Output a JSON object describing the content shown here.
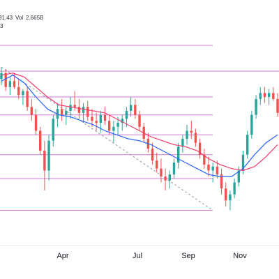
{
  "header": {
    "legend_prefix": "31.43",
    "volume_label": "Vol",
    "volume_value": "2.665B",
    "interval_label": "3"
  },
  "colors": {
    "up": "#26a69a",
    "down": "#ef5350",
    "level_line": "#d67ad9",
    "ma_fast": "#2962ff",
    "ma_slow": "#f23a6a",
    "trend_line": "#9598a1",
    "axis_text": "#131722"
  },
  "chart_data": {
    "type": "candlestick",
    "title": "",
    "xlabel": "",
    "ylabel": "",
    "x_axis_ticks": [
      "Apr",
      "Jul",
      "Sep",
      "Nov"
    ],
    "ylim": [
      0,
      100
    ],
    "levels": [
      93,
      80,
      67,
      58,
      48,
      38,
      26,
      10
    ],
    "trend_line": {
      "from": [
        0,
        82
      ],
      "to": [
        135,
        10
      ]
    },
    "moving_averages": [
      {
        "key": "fast",
        "values": [
          75,
          78,
          74,
          67,
          61,
          58,
          57,
          55,
          53,
          50,
          48,
          46,
          45,
          43,
          40,
          37,
          34,
          31,
          28,
          27,
          27,
          31,
          38,
          44,
          48
        ]
      },
      {
        "key": "slow",
        "values": [
          78,
          79,
          77,
          72,
          67,
          63,
          62,
          61,
          60,
          59,
          56,
          53,
          50,
          47,
          45,
          43,
          42,
          40,
          36,
          33,
          31,
          30,
          32,
          37,
          43
        ]
      }
    ],
    "candles": [
      {
        "o": 76,
        "h": 82,
        "l": 73,
        "c": 79
      },
      {
        "o": 79,
        "h": 81,
        "l": 70,
        "c": 72
      },
      {
        "o": 72,
        "h": 77,
        "l": 68,
        "c": 75
      },
      {
        "o": 75,
        "h": 79,
        "l": 71,
        "c": 72
      },
      {
        "o": 72,
        "h": 76,
        "l": 66,
        "c": 68
      },
      {
        "o": 68,
        "h": 71,
        "l": 63,
        "c": 70
      },
      {
        "o": 70,
        "h": 72,
        "l": 60,
        "c": 62
      },
      {
        "o": 62,
        "h": 66,
        "l": 55,
        "c": 58
      },
      {
        "o": 58,
        "h": 61,
        "l": 48,
        "c": 50
      },
      {
        "o": 50,
        "h": 52,
        "l": 38,
        "c": 40
      },
      {
        "o": 40,
        "h": 45,
        "l": 20,
        "c": 30
      },
      {
        "o": 30,
        "h": 48,
        "l": 25,
        "c": 45
      },
      {
        "o": 45,
        "h": 58,
        "l": 42,
        "c": 56
      },
      {
        "o": 56,
        "h": 64,
        "l": 52,
        "c": 61
      },
      {
        "o": 61,
        "h": 66,
        "l": 55,
        "c": 58
      },
      {
        "o": 58,
        "h": 62,
        "l": 53,
        "c": 60
      },
      {
        "o": 60,
        "h": 67,
        "l": 56,
        "c": 63
      },
      {
        "o": 63,
        "h": 70,
        "l": 60,
        "c": 62
      },
      {
        "o": 62,
        "h": 66,
        "l": 56,
        "c": 59
      },
      {
        "o": 59,
        "h": 64,
        "l": 54,
        "c": 62
      },
      {
        "o": 62,
        "h": 65,
        "l": 55,
        "c": 57
      },
      {
        "o": 57,
        "h": 61,
        "l": 52,
        "c": 55
      },
      {
        "o": 55,
        "h": 59,
        "l": 50,
        "c": 54
      },
      {
        "o": 54,
        "h": 60,
        "l": 49,
        "c": 58
      },
      {
        "o": 58,
        "h": 62,
        "l": 53,
        "c": 55
      },
      {
        "o": 55,
        "h": 58,
        "l": 48,
        "c": 50
      },
      {
        "o": 50,
        "h": 55,
        "l": 44,
        "c": 52
      },
      {
        "o": 52,
        "h": 57,
        "l": 48,
        "c": 54
      },
      {
        "o": 54,
        "h": 58,
        "l": 50,
        "c": 56
      },
      {
        "o": 56,
        "h": 62,
        "l": 52,
        "c": 60
      },
      {
        "o": 60,
        "h": 67,
        "l": 57,
        "c": 63
      },
      {
        "o": 63,
        "h": 66,
        "l": 56,
        "c": 58
      },
      {
        "o": 58,
        "h": 60,
        "l": 50,
        "c": 52
      },
      {
        "o": 52,
        "h": 54,
        "l": 44,
        "c": 46
      },
      {
        "o": 46,
        "h": 49,
        "l": 39,
        "c": 41
      },
      {
        "o": 41,
        "h": 44,
        "l": 33,
        "c": 35
      },
      {
        "o": 35,
        "h": 39,
        "l": 29,
        "c": 31
      },
      {
        "o": 31,
        "h": 36,
        "l": 24,
        "c": 27
      },
      {
        "o": 27,
        "h": 31,
        "l": 20,
        "c": 25
      },
      {
        "o": 25,
        "h": 30,
        "l": 21,
        "c": 28
      },
      {
        "o": 28,
        "h": 36,
        "l": 26,
        "c": 34
      },
      {
        "o": 34,
        "h": 44,
        "l": 31,
        "c": 42
      },
      {
        "o": 42,
        "h": 48,
        "l": 39,
        "c": 46
      },
      {
        "o": 46,
        "h": 53,
        "l": 43,
        "c": 50
      },
      {
        "o": 50,
        "h": 55,
        "l": 46,
        "c": 49
      },
      {
        "o": 49,
        "h": 51,
        "l": 42,
        "c": 44
      },
      {
        "o": 44,
        "h": 46,
        "l": 36,
        "c": 38
      },
      {
        "o": 38,
        "h": 41,
        "l": 31,
        "c": 33
      },
      {
        "o": 33,
        "h": 37,
        "l": 27,
        "c": 30
      },
      {
        "o": 30,
        "h": 34,
        "l": 24,
        "c": 32
      },
      {
        "o": 32,
        "h": 35,
        "l": 26,
        "c": 28
      },
      {
        "o": 28,
        "h": 31,
        "l": 18,
        "c": 21
      },
      {
        "o": 21,
        "h": 24,
        "l": 12,
        "c": 15
      },
      {
        "o": 15,
        "h": 20,
        "l": 10,
        "c": 18
      },
      {
        "o": 18,
        "h": 26,
        "l": 16,
        "c": 24
      },
      {
        "o": 24,
        "h": 32,
        "l": 22,
        "c": 30
      },
      {
        "o": 30,
        "h": 40,
        "l": 28,
        "c": 38
      },
      {
        "o": 38,
        "h": 50,
        "l": 36,
        "c": 48
      },
      {
        "o": 48,
        "h": 60,
        "l": 46,
        "c": 58
      },
      {
        "o": 58,
        "h": 68,
        "l": 56,
        "c": 66
      },
      {
        "o": 66,
        "h": 72,
        "l": 63,
        "c": 69
      },
      {
        "o": 69,
        "h": 72,
        "l": 64,
        "c": 67
      },
      {
        "o": 67,
        "h": 71,
        "l": 63,
        "c": 69
      },
      {
        "o": 69,
        "h": 72,
        "l": 65,
        "c": 66
      },
      {
        "o": 66,
        "h": 69,
        "l": 57,
        "c": 59
      }
    ]
  }
}
